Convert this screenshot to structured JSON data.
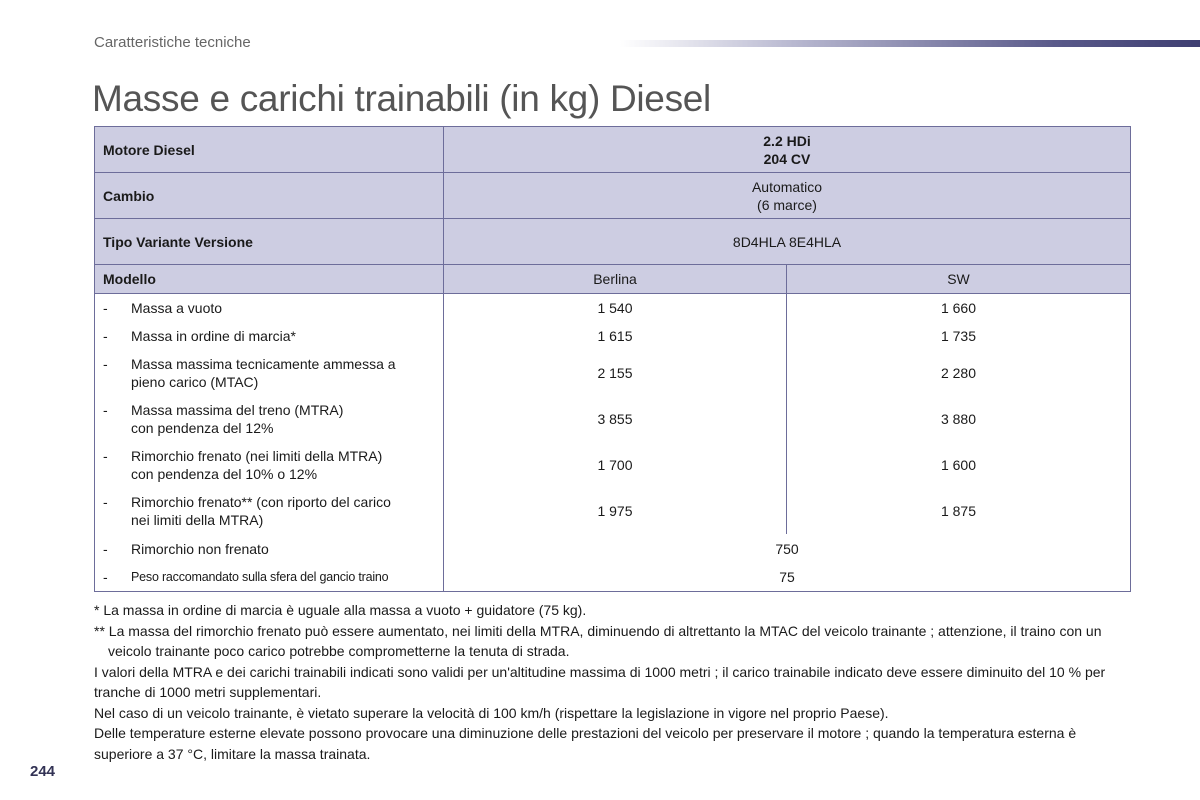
{
  "header": {
    "section": "Caratteristiche tecniche",
    "title": "Masse e carichi trainabili (in kg) Diesel"
  },
  "table": {
    "motore": {
      "label": "Motore Diesel",
      "value_line1": "2.2 HDi",
      "value_line2": "204 CV"
    },
    "cambio": {
      "label": "Cambio",
      "value_line1": "Automatico",
      "value_line2": "(6 marce)"
    },
    "tipo": {
      "label": "Tipo Variante Versione",
      "value": "8D4HLA 8E4HLA"
    },
    "modello": {
      "label": "Modello",
      "col1": "Berlina",
      "col2": "SW"
    },
    "rows": [
      {
        "dash": "-",
        "label": "Massa a vuoto",
        "berlina": "1 540",
        "sw": "1 660"
      },
      {
        "dash": "-",
        "label": "Massa in ordine di marcia*",
        "berlina": "1 615",
        "sw": "1 735"
      },
      {
        "dash": "-",
        "label_line1": "Massa massima tecnicamente ammessa a",
        "label_line2": "pieno carico (MTAC)",
        "berlina": "2 155",
        "sw": "2 280"
      },
      {
        "dash": "-",
        "label_line1": "Massa massima del treno (MTRA)",
        "label_line2": "con pendenza del 12%",
        "berlina": "3 855",
        "sw": "3 880"
      },
      {
        "dash": "-",
        "label_line1": "Rimorchio frenato (nei limiti della MTRA)",
        "label_line2": "con pendenza del 10% o 12%",
        "berlina": "1 700",
        "sw": "1 600"
      },
      {
        "dash": "-",
        "label_line1": "Rimorchio frenato** (con riporto del carico",
        "label_line2": "nei limiti della MTRA)",
        "berlina": "1 975",
        "sw": "1 875"
      },
      {
        "dash": "-",
        "label": "Rimorchio non frenato",
        "both": "750"
      },
      {
        "dash": "-",
        "label": "Peso raccomandato sulla sfera del gancio traino",
        "both": "75"
      }
    ]
  },
  "notes": {
    "n1": "* La massa in ordine di marcia è uguale alla massa a vuoto + guidatore (75 kg).",
    "n2": "** La massa del rimorchio frenato può essere aumentato, nei limiti della MTRA, diminuendo di altrettanto la MTAC del veicolo trainante ; attenzione, il traino con un veicolo trainante poco carico potrebbe comprometterne la tenuta di strada.",
    "n3": "I valori della MTRA e dei carichi trainabili indicati sono validi per un'altitudine massima di 1000 metri ; il carico trainabile indicato deve essere diminuito del 10 % per tranche di 1000 metri supplementari.",
    "n4": "Nel caso di un veicolo trainante, è vietato superare la velocità di 100 km/h (rispettare la legislazione in vigore nel proprio Paese).",
    "n5": "Delle temperature esterne elevate possono provocare una diminuzione delle prestazioni del veicolo per preservare il motore ; quando la temperatura esterna è superiore a 37 °C, limitare la massa trainata."
  },
  "page_number": "244",
  "colors": {
    "header_fill": "#cdcde2",
    "border": "#6d6d9a",
    "title": "#555555"
  }
}
